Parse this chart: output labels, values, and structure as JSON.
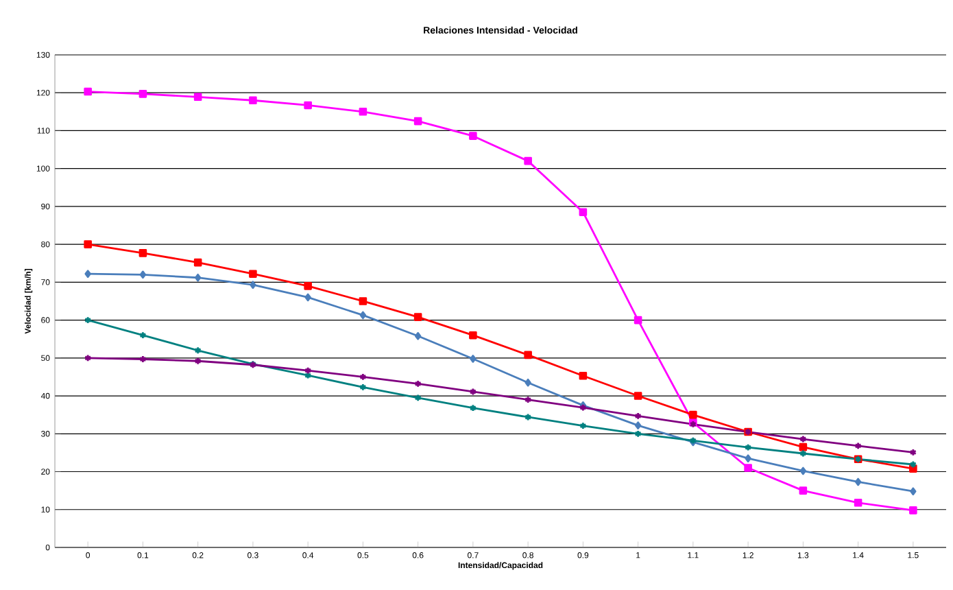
{
  "chart_data": {
    "type": "line",
    "title": "Relaciones Intensidad - Velocidad",
    "xlabel": "Intensidad/Capacidad",
    "ylabel": "Velocidad [km/h]",
    "categories": [
      "0",
      "0.1",
      "0.2",
      "0.3",
      "0.4",
      "0.5",
      "0.6",
      "0.7",
      "0.8",
      "0.9",
      "1",
      "1.1",
      "1.2",
      "1.3",
      "1.4",
      "1.5"
    ],
    "ylim": [
      0,
      130
    ],
    "yticks": [
      0,
      10,
      20,
      30,
      40,
      50,
      60,
      70,
      80,
      90,
      100,
      110,
      120,
      130
    ],
    "grid": "y",
    "series": [
      {
        "color": "#ff00ff",
        "marker": "square",
        "values": [
          120.3,
          119.7,
          118.9,
          118,
          116.7,
          115,
          112.5,
          108.6,
          102,
          88.5,
          60,
          33,
          21,
          15,
          11.8,
          9.8
        ]
      },
      {
        "color": "#ff0000",
        "marker": "square",
        "values": [
          80,
          77.7,
          75.2,
          72.2,
          69,
          65,
          60.8,
          56,
          50.8,
          45.3,
          40,
          35,
          30.5,
          26.5,
          23.3,
          20.8
        ]
      },
      {
        "color": "#4a7ebb",
        "marker": "diamond",
        "values": [
          72.2,
          72,
          71.2,
          69.3,
          66,
          61.3,
          55.8,
          49.8,
          43.5,
          37.5,
          32.2,
          27.8,
          23.5,
          20.2,
          17.3,
          14.8
        ]
      },
      {
        "color": "#008080",
        "marker": "cross",
        "values": [
          60,
          56,
          52,
          48.4,
          45.4,
          42.3,
          39.5,
          36.8,
          34.4,
          32.1,
          30,
          28.2,
          26.4,
          24.8,
          23.3,
          21.9
        ]
      },
      {
        "color": "#800080",
        "marker": "cross",
        "values": [
          50,
          49.7,
          49.2,
          48.2,
          46.7,
          45,
          43.2,
          41.1,
          39,
          36.9,
          34.7,
          32.5,
          30.5,
          28.6,
          26.8,
          25.1
        ]
      }
    ]
  }
}
